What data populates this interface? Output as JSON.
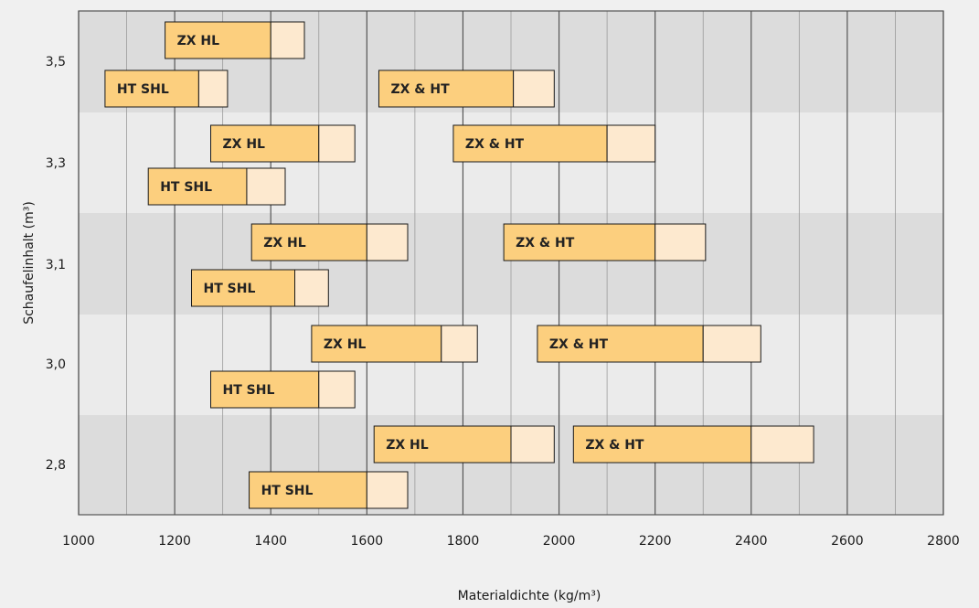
{
  "chart_data": {
    "type": "bar",
    "orientation": "horizontal-range",
    "title": "",
    "xlabel": "Materialdichte (kg/m³)",
    "ylabel": "Schaufelinhalt (m³)",
    "xlim": [
      1000,
      2800
    ],
    "xticks": [
      "1000",
      "1200",
      "1400",
      "1600",
      "1800",
      "2000",
      "2200",
      "2400",
      "2600",
      "2800"
    ],
    "yticks": [
      "2,8",
      "3,0",
      "3,1",
      "3,3",
      "3,5"
    ],
    "grid": true,
    "colors": {
      "main_segment": "#fccf7e",
      "extension_segment": "#fde9cf",
      "band_dark": "#dcdcdc",
      "band_light": "#ebebeb",
      "outline": "#1a1a1a"
    },
    "bars": [
      {
        "label": "ZX HL",
        "bucket": "3,5",
        "start": 1180,
        "main_end": 1400,
        "ext_end": 1470
      },
      {
        "label": "HT SHL",
        "bucket": "3,5",
        "start": 1055,
        "main_end": 1250,
        "ext_end": 1310
      },
      {
        "label": "ZX & HT",
        "bucket": "3,5",
        "start": 1625,
        "main_end": 1905,
        "ext_end": 1990
      },
      {
        "label": "ZX HL",
        "bucket": "3,3",
        "start": 1275,
        "main_end": 1500,
        "ext_end": 1575
      },
      {
        "label": "HT SHL",
        "bucket": "3,3",
        "start": 1145,
        "main_end": 1350,
        "ext_end": 1430
      },
      {
        "label": "ZX & HT",
        "bucket": "3,3",
        "start": 1780,
        "main_end": 2100,
        "ext_end": 2200
      },
      {
        "label": "ZX HL",
        "bucket": "3,1",
        "start": 1360,
        "main_end": 1600,
        "ext_end": 1685
      },
      {
        "label": "HT SHL",
        "bucket": "3,1",
        "start": 1235,
        "main_end": 1450,
        "ext_end": 1520
      },
      {
        "label": "ZX & HT",
        "bucket": "3,1",
        "start": 1885,
        "main_end": 2200,
        "ext_end": 2305
      },
      {
        "label": "ZX HL",
        "bucket": "3,0",
        "start": 1485,
        "main_end": 1755,
        "ext_end": 1830
      },
      {
        "label": "HT SHL",
        "bucket": "3,0",
        "start": 1275,
        "main_end": 1500,
        "ext_end": 1575
      },
      {
        "label": "ZX & HT",
        "bucket": "3,0",
        "start": 1955,
        "main_end": 2300,
        "ext_end": 2420
      },
      {
        "label": "ZX HL",
        "bucket": "2,8",
        "start": 1615,
        "main_end": 1900,
        "ext_end": 1990
      },
      {
        "label": "HT SHL",
        "bucket": "2,8",
        "start": 1355,
        "main_end": 1600,
        "ext_end": 1685
      },
      {
        "label": "ZX & HT",
        "bucket": "2,8",
        "start": 2030,
        "main_end": 2400,
        "ext_end": 2530
      }
    ]
  }
}
